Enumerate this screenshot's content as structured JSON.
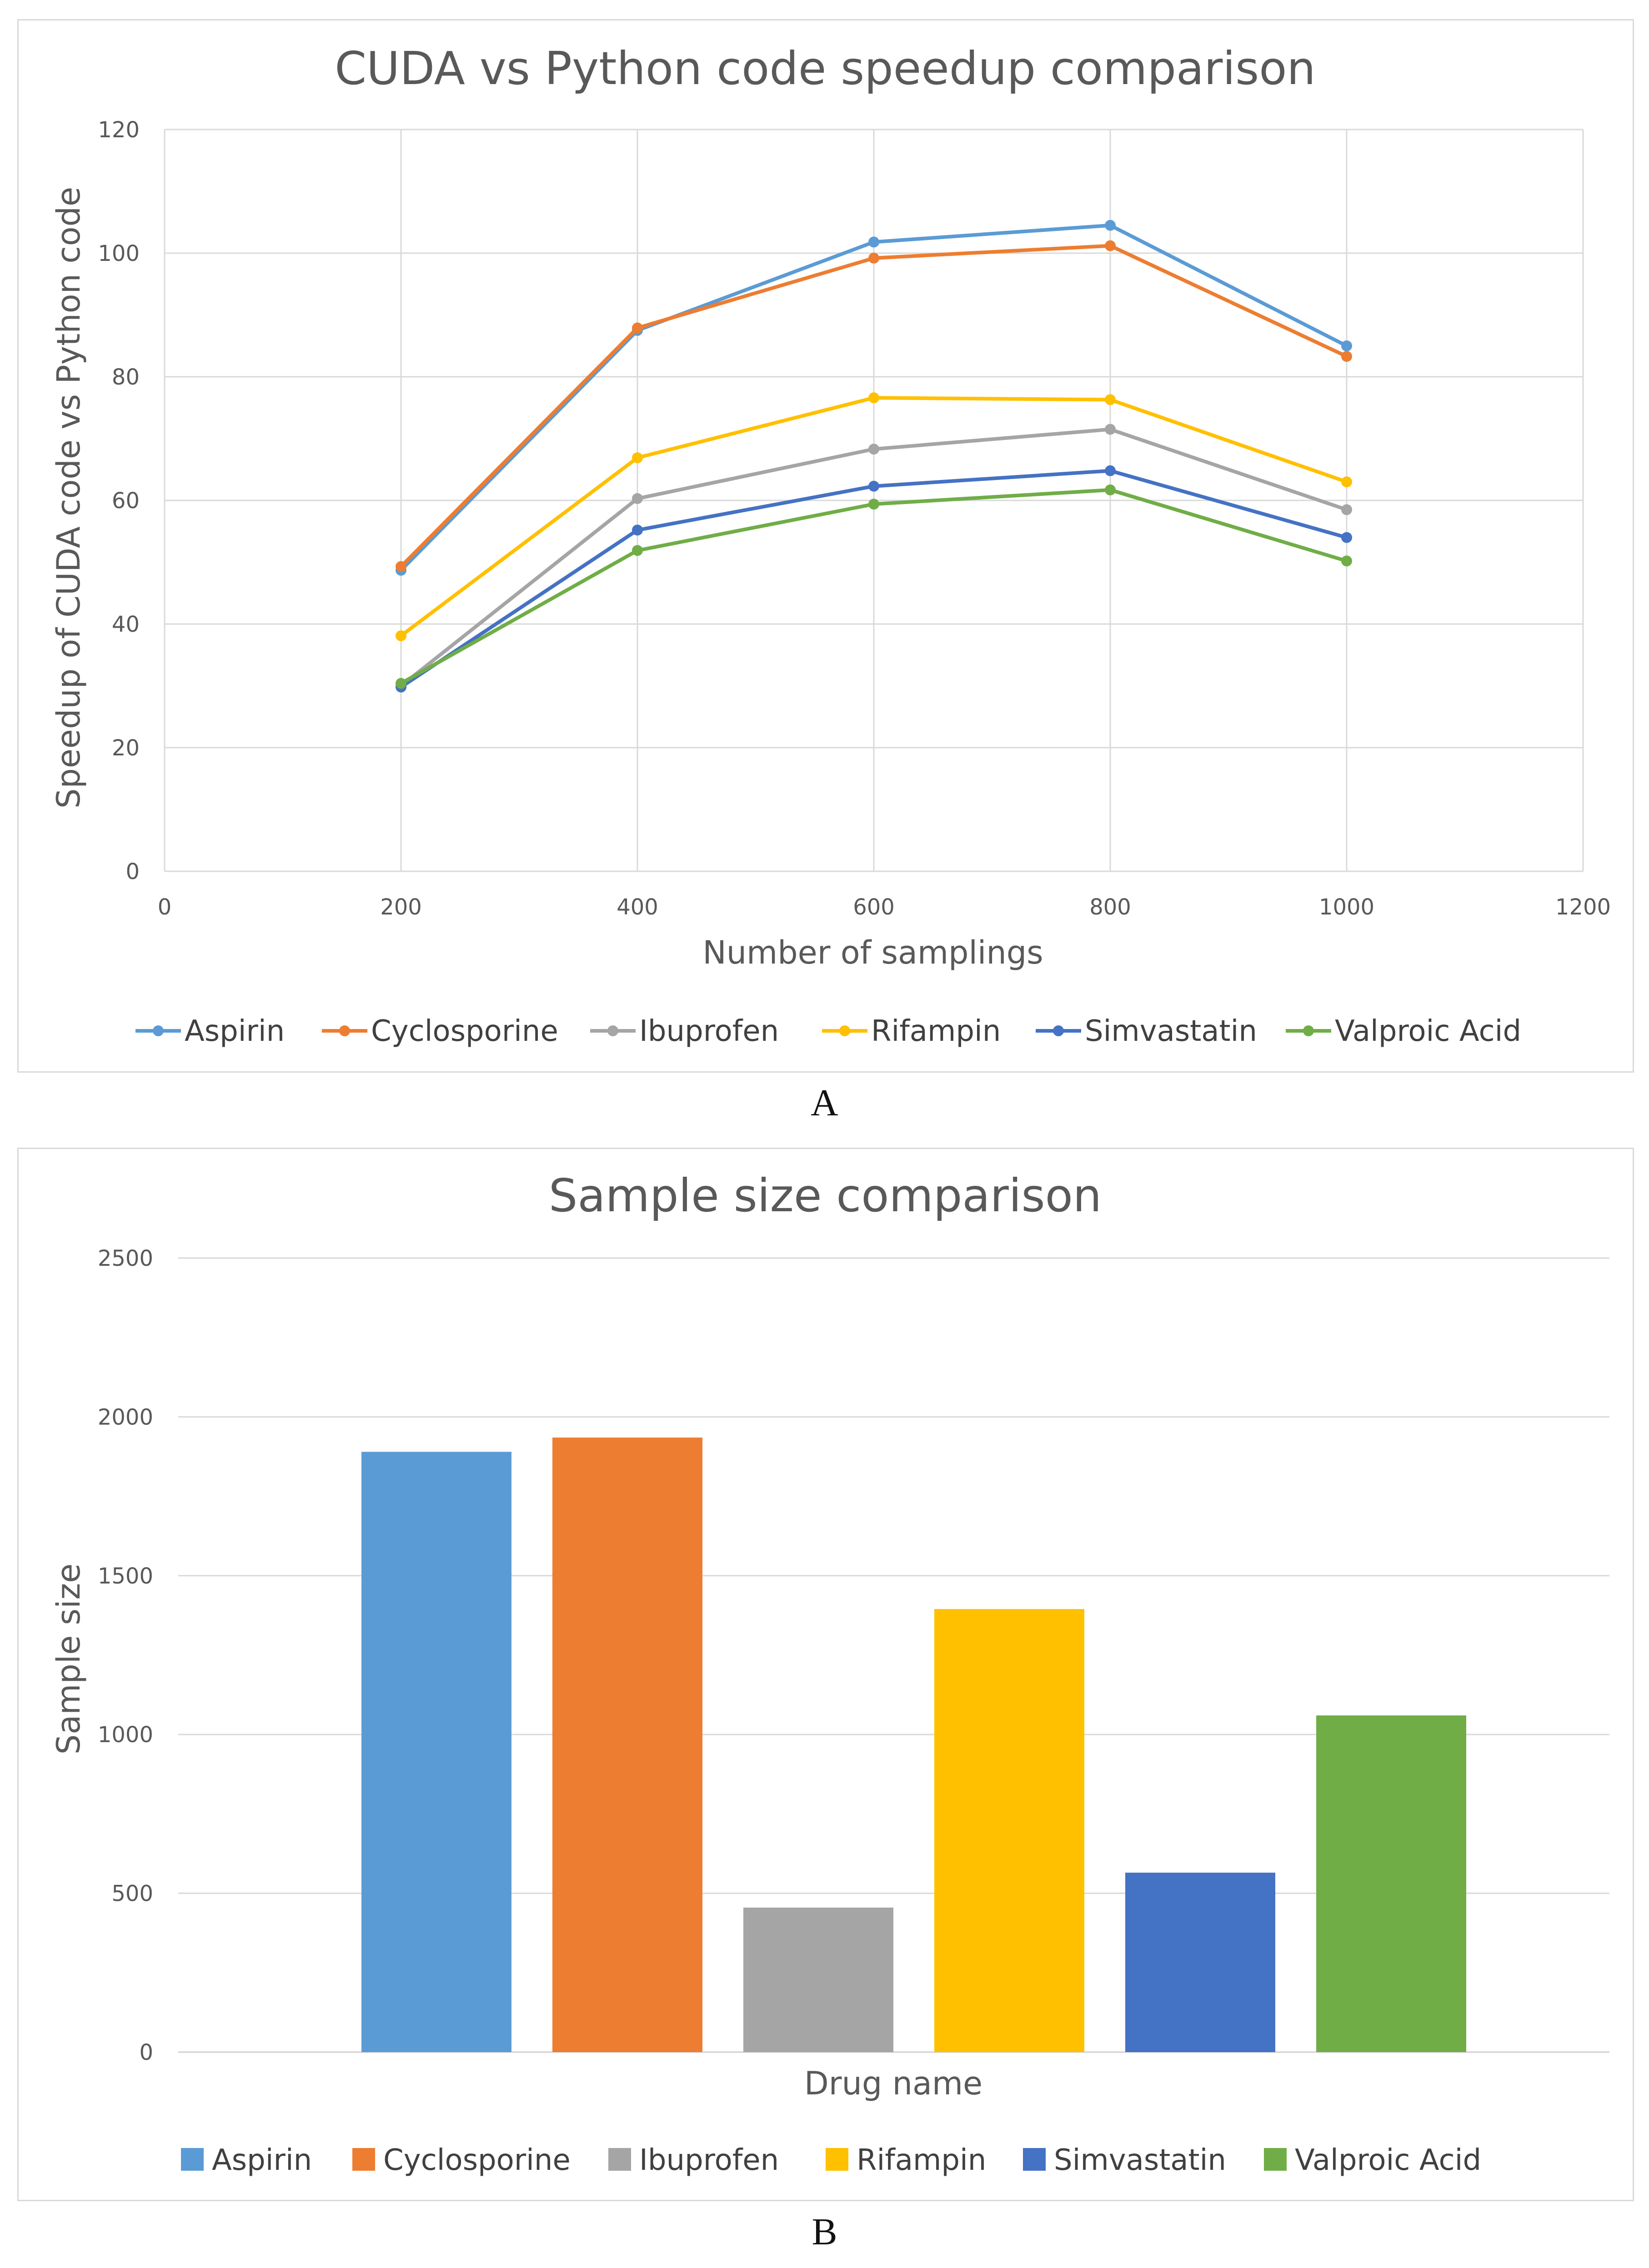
{
  "panel_labels": {
    "a": "A",
    "b": "B"
  },
  "chart_data": [
    {
      "type": "line",
      "title": "CUDA vs Python code speedup comparison",
      "xlabel": "Number of samplings",
      "ylabel": "Speedup of CUDA code vs Python code",
      "xlim": [
        0,
        1200
      ],
      "ylim": [
        0,
        120
      ],
      "xticks": [
        0,
        200,
        400,
        600,
        800,
        1000,
        1200
      ],
      "yticks": [
        0,
        20,
        40,
        60,
        80,
        100,
        120
      ],
      "grid": true,
      "legend_position": "bottom",
      "x": [
        200,
        400,
        600,
        800,
        1000
      ],
      "series": [
        {
          "name": "Aspirin",
          "color": "#5b9bd5",
          "values": [
            48.7,
            87.5,
            101.8,
            104.5,
            85.0
          ]
        },
        {
          "name": "Cyclosporine",
          "color": "#ed7d31",
          "values": [
            49.3,
            87.9,
            99.2,
            101.2,
            83.3
          ]
        },
        {
          "name": "Ibuprofen",
          "color": "#a5a5a5",
          "values": [
            30.0,
            60.3,
            68.3,
            71.5,
            58.5
          ]
        },
        {
          "name": "Rifampin",
          "color": "#ffc000",
          "values": [
            38.1,
            66.9,
            76.6,
            76.3,
            63.0
          ]
        },
        {
          "name": "Simvastatin",
          "color": "#4472c4",
          "values": [
            29.8,
            55.2,
            62.3,
            64.8,
            54.0
          ]
        },
        {
          "name": "Valproic Acid",
          "color": "#70ad47",
          "values": [
            30.4,
            51.9,
            59.4,
            61.7,
            50.2
          ]
        }
      ]
    },
    {
      "type": "bar",
      "title": "Sample size comparison",
      "xlabel": "Drug name",
      "ylabel": "Sample size",
      "ylim": [
        0,
        2500
      ],
      "yticks": [
        0,
        500,
        1000,
        1500,
        2000,
        2500
      ],
      "grid": true,
      "legend_position": "bottom",
      "categories": [
        "Aspirin",
        "Cyclosporine",
        "Ibuprofen",
        "Rifampin",
        "Simvastatin",
        "Valproic Acid"
      ],
      "colors": [
        "#5b9bd5",
        "#ed7d31",
        "#a5a5a5",
        "#ffc000",
        "#4472c4",
        "#70ad47"
      ],
      "values": [
        1890,
        1935,
        455,
        1395,
        565,
        1060
      ]
    }
  ]
}
